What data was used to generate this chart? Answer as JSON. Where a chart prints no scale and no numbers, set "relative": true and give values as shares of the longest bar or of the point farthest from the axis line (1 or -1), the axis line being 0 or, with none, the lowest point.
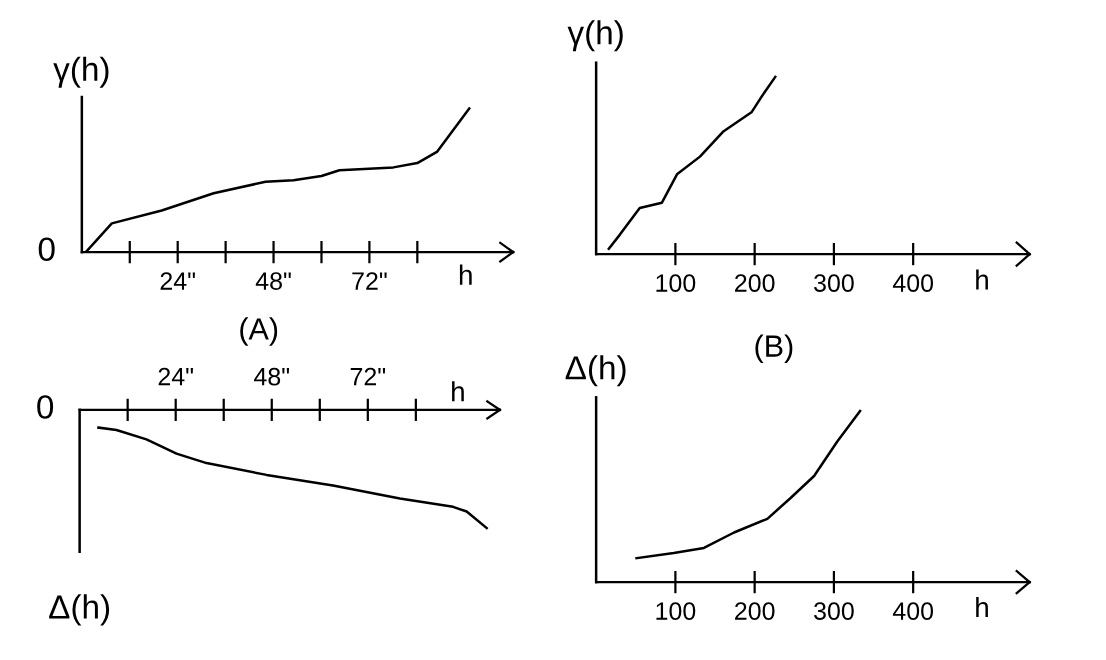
{
  "chart_data": [
    {
      "type": "line",
      "title": "(A)",
      "ylabel": "γ(h)",
      "xlabel": "h",
      "relative": true,
      "tick_labels": "x",
      "grid": false,
      "legend": false,
      "xlim": [
        0,
        108
      ],
      "xticks": [
        {
          "value": 12,
          "label": null
        },
        {
          "value": 24,
          "label": "24\""
        },
        {
          "value": 36,
          "label": null
        },
        {
          "value": 48,
          "label": "48\""
        },
        {
          "value": 60,
          "label": null
        },
        {
          "value": 72,
          "label": "72\""
        },
        {
          "value": 84,
          "label": null
        }
      ],
      "annotations": [
        "0"
      ],
      "series": [
        {
          "color": "#000000",
          "x": [
            1,
            7.5,
            20,
            33,
            46,
            53,
            60,
            64.5,
            78,
            84,
            89,
            97
          ],
          "values": [
            0,
            0.2,
            0.29,
            0.41,
            0.49,
            0.5,
            0.53,
            0.57,
            0.59,
            0.62,
            0.7,
            1
          ]
        }
      ]
    },
    {
      "type": "line",
      "title": "(B)",
      "ylabel": "γ(h)",
      "xlabel": "h",
      "relative": true,
      "tick_labels": "x",
      "grid": false,
      "legend": false,
      "xlim": [
        0,
        547
      ],
      "xticks": [
        100,
        200,
        300,
        400
      ],
      "series": [
        {
          "color": "#000000",
          "x": [
            16,
            30,
            55,
            83,
            102,
            131,
            160,
            196,
            209,
            226
          ],
          "values": [
            0.03,
            0.11,
            0.26,
            0.29,
            0.45,
            0.55,
            0.69,
            0.8,
            0.89,
            1
          ]
        }
      ]
    },
    {
      "type": "line",
      "ylabel": "Δ(h)",
      "xlabel": "h",
      "relative": true,
      "tick_labels": "x",
      "grid": false,
      "legend": false,
      "xlim": [
        0,
        105
      ],
      "xticks": [
        {
          "value": 12,
          "label": null
        },
        {
          "value": 24,
          "label": "24\""
        },
        {
          "value": 36,
          "label": null
        },
        {
          "value": 48,
          "label": "48\""
        },
        {
          "value": 60,
          "label": null
        },
        {
          "value": 72,
          "label": "72\""
        },
        {
          "value": 84,
          "label": null
        }
      ],
      "annotations": [
        "0"
      ],
      "series": [
        {
          "color": "#000000",
          "x": [
            4.7,
            9.2,
            16.7,
            24.2,
            31.7,
            46.7,
            63.3,
            80,
            93.3,
            96.7,
            101.7
          ],
          "values": [
            -0.15,
            -0.17,
            -0.25,
            -0.37,
            -0.45,
            -0.55,
            -0.64,
            -0.75,
            -0.82,
            -0.86,
            -1
          ]
        }
      ]
    },
    {
      "type": "line",
      "ylabel": "Δ(h)",
      "xlabel": "h",
      "relative": true,
      "tick_labels": "x",
      "grid": false,
      "legend": false,
      "xlim": [
        0,
        547
      ],
      "xticks": [
        100,
        200,
        300,
        400
      ],
      "series": [
        {
          "color": "#000000",
          "x": [
            51,
            98,
            136,
            174,
            216,
            245,
            275,
            304,
            333
          ],
          "values": [
            0.14,
            0.17,
            0.2,
            0.29,
            0.37,
            0.49,
            0.62,
            0.82,
            1
          ]
        }
      ]
    }
  ]
}
